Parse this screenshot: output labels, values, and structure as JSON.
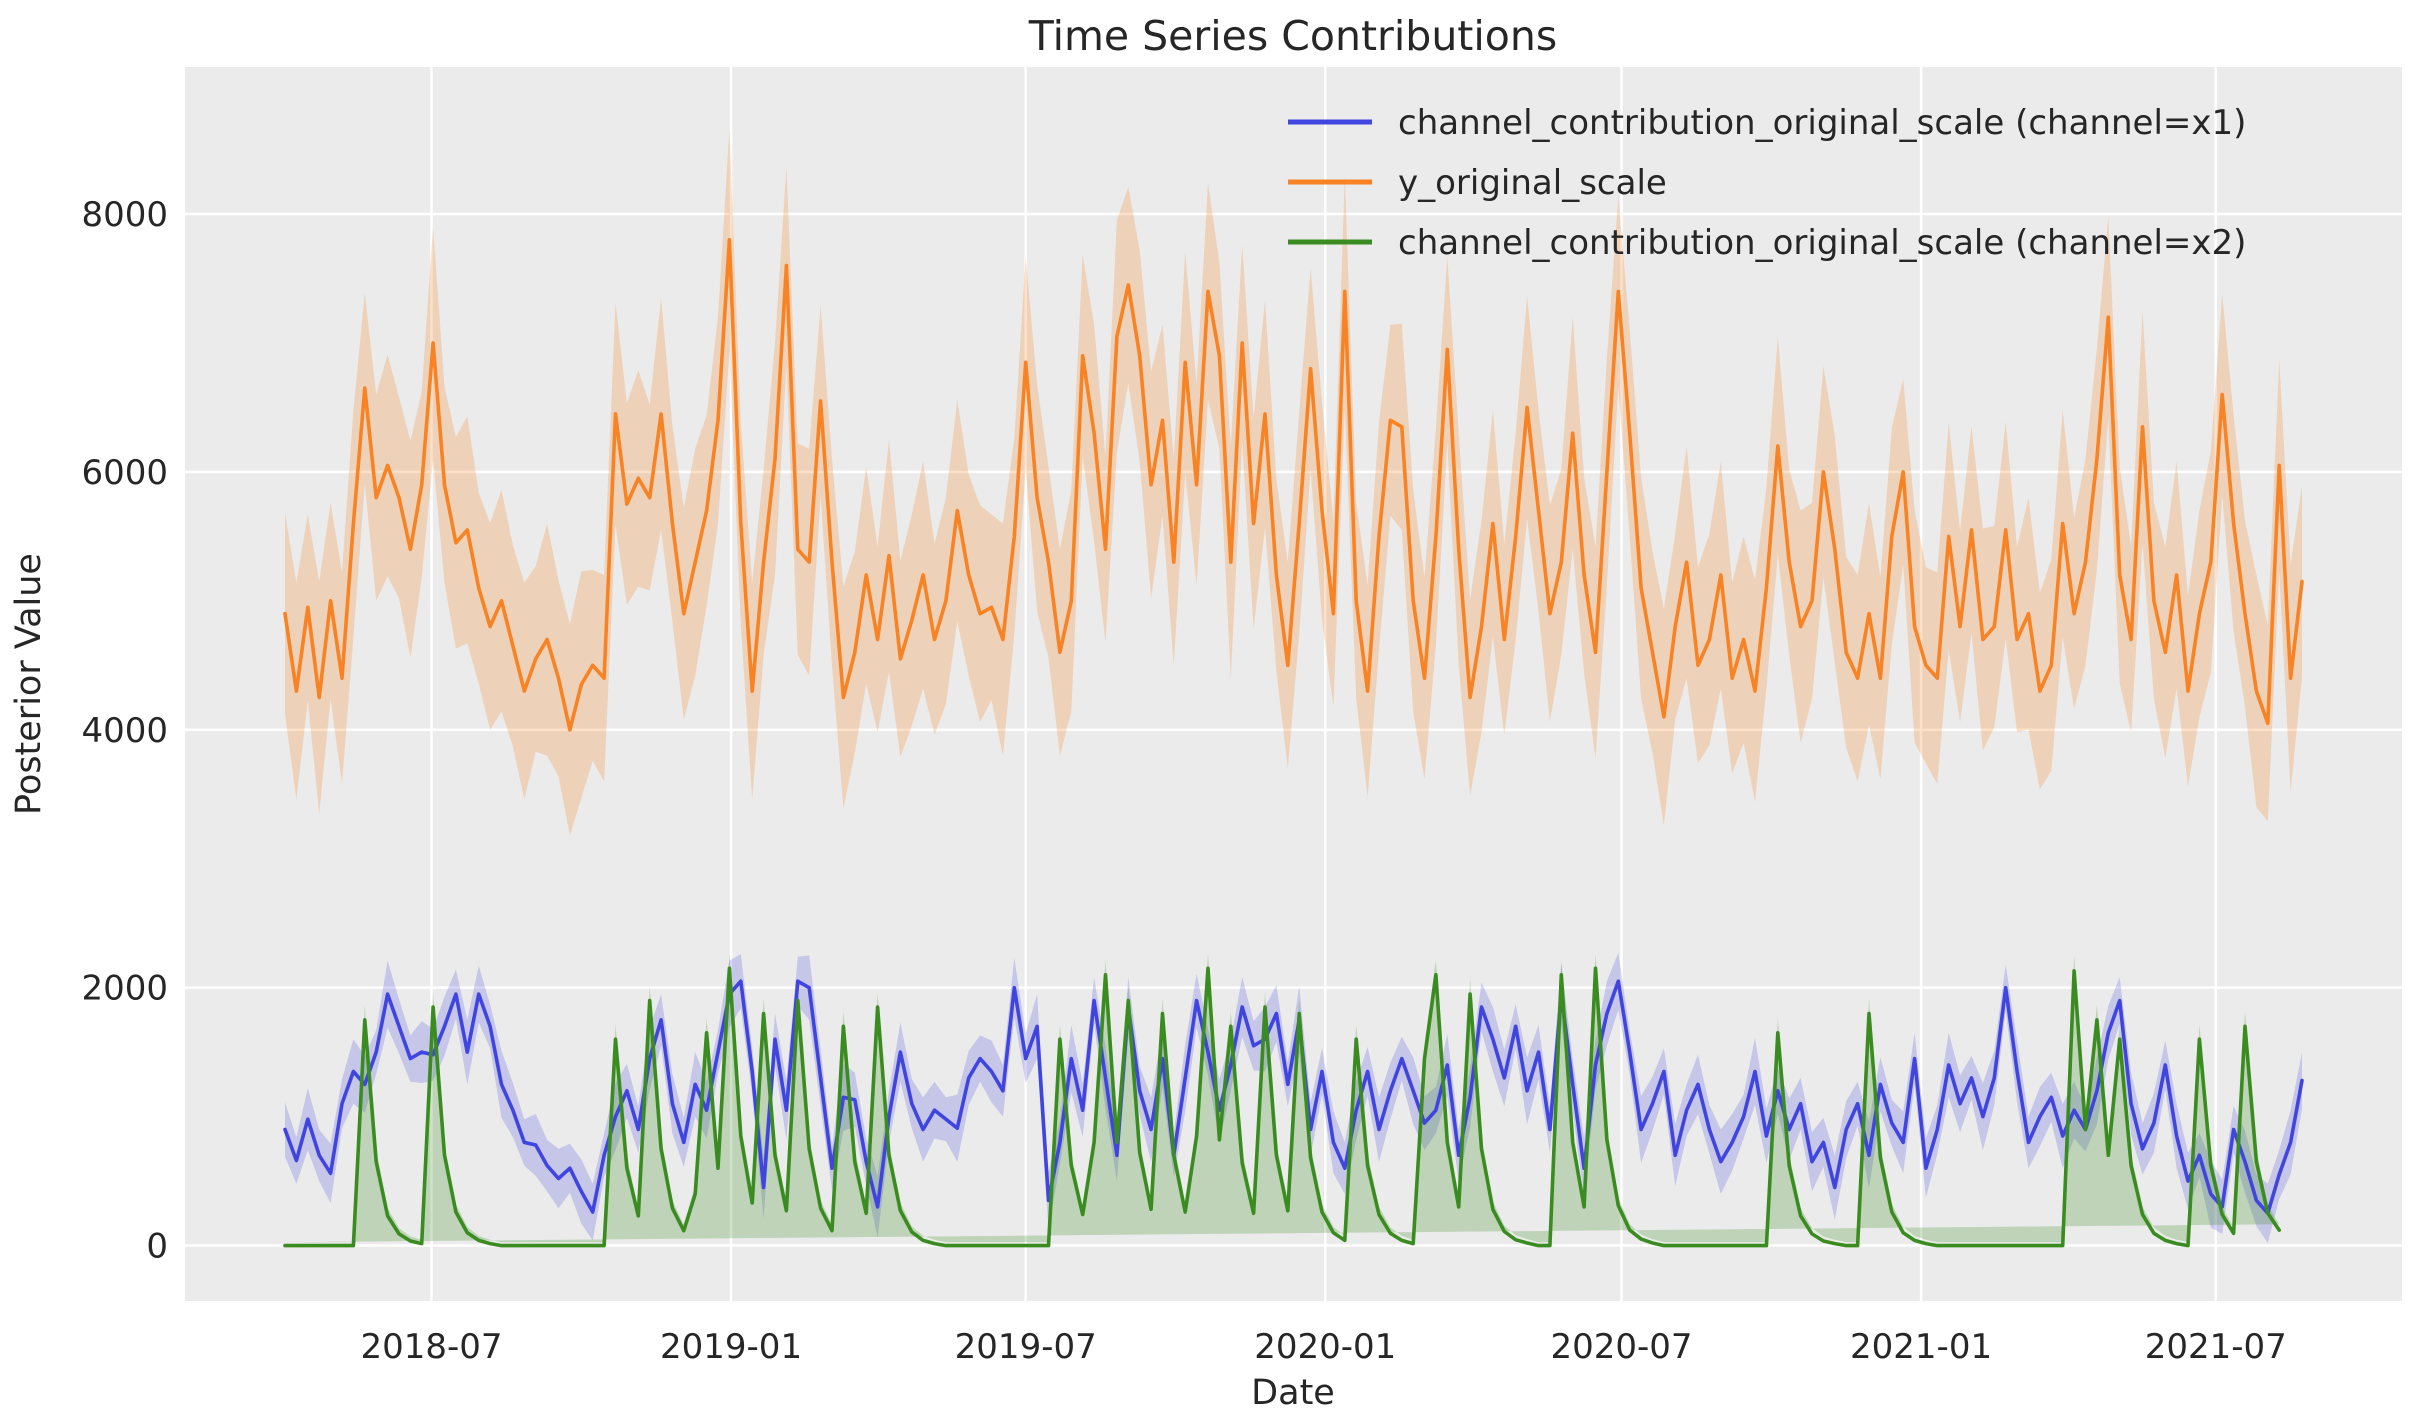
{
  "title": "Time Series Contributions",
  "xlabel": "Date",
  "ylabel": "Posterior Value",
  "colors": {
    "figure_background": "#ffffff",
    "axes_background": "#ebebeb",
    "grid": "#ffffff",
    "text": "#262626",
    "x1_line": "#4045e0",
    "y_line": "#f78325",
    "x2_line": "#3a8c21"
  },
  "legend": {
    "position": "upper right",
    "frame": false
  },
  "chart_data": {
    "type": "line",
    "title": "Time Series Contributions",
    "xlabel": "Date",
    "ylabel": "Posterior Value",
    "grid": true,
    "ylim": [
      -430,
      9140
    ],
    "yticks": [
      {
        "value": 0,
        "label": "0"
      },
      {
        "value": 2000,
        "label": "2000"
      },
      {
        "value": 4000,
        "label": "4000"
      },
      {
        "value": 6000,
        "label": "6000"
      },
      {
        "value": 8000,
        "label": "8000"
      }
    ],
    "xticks": [
      {
        "date": "2018-07-01",
        "label": "2018-07"
      },
      {
        "date": "2019-01-01",
        "label": "2019-01"
      },
      {
        "date": "2019-07-01",
        "label": "2019-07"
      },
      {
        "date": "2020-01-01",
        "label": "2020-01"
      },
      {
        "date": "2020-07-01",
        "label": "2020-07"
      },
      {
        "date": "2021-01-01",
        "label": "2021-01"
      },
      {
        "date": "2021-07-01",
        "label": "2021-07"
      }
    ],
    "x": {
      "start": "2018-04-02",
      "freq_days": 7,
      "n": 178
    },
    "series": [
      {
        "name": "channel_contribution_original_scale (channel=x1)",
        "color": "#4045e0",
        "band_opacity": 0.22,
        "values": [
          900,
          660,
          980,
          700,
          560,
          1100,
          1350,
          1250,
          1500,
          1950,
          1700,
          1450,
          1500,
          1480,
          1700,
          1950,
          1500,
          1950,
          1700,
          1250,
          1050,
          800,
          780,
          620,
          520,
          600,
          420,
          260,
          700,
          1000,
          1200,
          900,
          1450,
          1750,
          1100,
          800,
          1250,
          1050,
          1500,
          1950,
          2050,
          1350,
          450,
          1600,
          1050,
          2050,
          2000,
          1300,
          600,
          1150,
          1130,
          650,
          300,
          1000,
          1500,
          1100,
          900,
          1050,
          980,
          910,
          1300,
          1450,
          1350,
          1200,
          2000,
          1450,
          1700,
          350,
          800,
          1450,
          1050,
          1900,
          1300,
          700,
          1850,
          1200,
          900,
          1450,
          700,
          1300,
          1900,
          1500,
          1050,
          1400,
          1850,
          1550,
          1600,
          1800,
          1250,
          1750,
          900,
          1350,
          800,
          600,
          1050,
          1350,
          900,
          1200,
          1450,
          1200,
          950,
          1050,
          1400,
          700,
          1150,
          1850,
          1600,
          1300,
          1700,
          1200,
          1500,
          900,
          1950,
          1250,
          600,
          1400,
          1800,
          2050,
          1500,
          900,
          1100,
          1350,
          700,
          1050,
          1250,
          900,
          650,
          800,
          1000,
          1350,
          850,
          1200,
          900,
          1100,
          650,
          800,
          450,
          900,
          1100,
          700,
          1250,
          950,
          800,
          1450,
          600,
          900,
          1400,
          1100,
          1300,
          1000,
          1300,
          2000,
          1350,
          800,
          1000,
          1150,
          850,
          1050,
          900,
          1200,
          1650,
          1900,
          1100,
          750,
          950,
          1400,
          850,
          500,
          700,
          400,
          300,
          900,
          650,
          350,
          250,
          550,
          800,
          1280
        ],
        "band_halfwidth": [
          210,
          180,
          240,
          200,
          230,
          190,
          250,
          220,
          170,
          260,
          210,
          180,
          240,
          200,
          230,
          190,
          250,
          220,
          170,
          260,
          210,
          180,
          240,
          200,
          230,
          190,
          250,
          220,
          170,
          260,
          210,
          180,
          240,
          200,
          230,
          190,
          250,
          220,
          170,
          260,
          210,
          180,
          240,
          200,
          230,
          190,
          250,
          220,
          170,
          260,
          210,
          180,
          240,
          200,
          230,
          190,
          250,
          220,
          170,
          260,
          210,
          180,
          240,
          200,
          230,
          190,
          250,
          220,
          170,
          260,
          210,
          180,
          240,
          200,
          230,
          190,
          250,
          220,
          170,
          260,
          210,
          180,
          240,
          200,
          230,
          190,
          250,
          220,
          170,
          260,
          210,
          180,
          240,
          200,
          230,
          190,
          250,
          220,
          170,
          260,
          210,
          180,
          240,
          200,
          230,
          190,
          250,
          220,
          170,
          260,
          210,
          180,
          240,
          200,
          230,
          190,
          250,
          220,
          170,
          260,
          210,
          180,
          240,
          200,
          230,
          190,
          250,
          220,
          170,
          260,
          210,
          180,
          240,
          200,
          230,
          190,
          250,
          220,
          170,
          260,
          210,
          180,
          240,
          200,
          230,
          190,
          250,
          220,
          170,
          260,
          210,
          180,
          240,
          200,
          230,
          190,
          250,
          220,
          170,
          260,
          210,
          180,
          240,
          200,
          230,
          190,
          250,
          220,
          170,
          260,
          210,
          180,
          240,
          200,
          230,
          190,
          250,
          220
        ]
      },
      {
        "name": "y_original_scale",
        "color": "#f78325",
        "band_opacity": 0.25,
        "values": [
          4900,
          4300,
          4950,
          4250,
          5000,
          4400,
          5600,
          6650,
          5800,
          6050,
          5800,
          5400,
          5900,
          7000,
          5900,
          5450,
          5550,
          5100,
          4800,
          5000,
          4650,
          4300,
          4550,
          4700,
          4400,
          4000,
          4350,
          4500,
          4400,
          6450,
          5750,
          5950,
          5800,
          6450,
          5600,
          4900,
          5300,
          5700,
          6400,
          7800,
          5600,
          4300,
          5300,
          6100,
          7600,
          5400,
          5300,
          6550,
          5300,
          4250,
          4600,
          5200,
          4700,
          5350,
          4550,
          4850,
          5200,
          4700,
          5000,
          5700,
          5200,
          4900,
          4950,
          4700,
          5500,
          6850,
          5800,
          5300,
          4600,
          5000,
          6900,
          6300,
          5400,
          7050,
          7450,
          6900,
          5900,
          6400,
          5300,
          6850,
          5900,
          7400,
          6900,
          5300,
          7000,
          5600,
          6450,
          5200,
          4500,
          5600,
          6800,
          5700,
          4900,
          7400,
          5000,
          4300,
          5500,
          6400,
          6350,
          5000,
          4400,
          5500,
          6950,
          5400,
          4250,
          4800,
          5600,
          4700,
          5500,
          6500,
          5700,
          4900,
          5300,
          6300,
          5200,
          4600,
          6000,
          7400,
          6300,
          5100,
          4600,
          4100,
          4800,
          5300,
          4500,
          4700,
          5200,
          4400,
          4700,
          4300,
          5100,
          6200,
          5300,
          4800,
          5000,
          6000,
          5400,
          4600,
          4400,
          4900,
          4400,
          5500,
          6000,
          4800,
          4500,
          4400,
          5500,
          4800,
          5550,
          4700,
          4800,
          5550,
          4700,
          4900,
          4300,
          4500,
          5600,
          4900,
          5300,
          6100,
          7200,
          5200,
          4700,
          6350,
          5000,
          4600,
          5200,
          4300,
          4900,
          5300,
          6600,
          5600,
          4900,
          4300,
          4050,
          6050,
          4400,
          5150
        ],
        "band_halfwidth": [
          780,
          840,
          720,
          900,
          760,
          820,
          880,
          740,
          800,
          860,
          780,
          840,
          720,
          900,
          760,
          820,
          880,
          740,
          800,
          860,
          780,
          840,
          720,
          900,
          760,
          820,
          880,
          740,
          800,
          860,
          780,
          840,
          720,
          900,
          760,
          820,
          880,
          740,
          800,
          860,
          780,
          840,
          720,
          900,
          760,
          820,
          880,
          740,
          800,
          860,
          780,
          840,
          720,
          900,
          760,
          820,
          880,
          740,
          800,
          860,
          780,
          840,
          720,
          900,
          760,
          820,
          880,
          740,
          800,
          860,
          780,
          840,
          720,
          900,
          760,
          820,
          880,
          740,
          800,
          860,
          780,
          840,
          720,
          900,
          760,
          820,
          880,
          740,
          800,
          860,
          780,
          840,
          720,
          900,
          760,
          820,
          880,
          740,
          800,
          860,
          780,
          840,
          720,
          900,
          760,
          820,
          880,
          740,
          800,
          860,
          780,
          840,
          720,
          900,
          760,
          820,
          880,
          740,
          800,
          860,
          780,
          840,
          720,
          900,
          760,
          820,
          880,
          740,
          800,
          860,
          780,
          840,
          720,
          900,
          760,
          820,
          880,
          740,
          800,
          860,
          780,
          840,
          720,
          900,
          760,
          820,
          880,
          740,
          800,
          860,
          780,
          840,
          720,
          900,
          760,
          820,
          880,
          740,
          800,
          860,
          780,
          840,
          720,
          900,
          760,
          820,
          880,
          740,
          800,
          860,
          780,
          840,
          720,
          900,
          760,
          820,
          880,
          740
        ]
      },
      {
        "name": "channel_contribution_original_scale (channel=x2)",
        "color": "#3a8c21",
        "band_opacity": 0.25,
        "values": [
          0,
          0,
          0,
          0,
          0,
          0,
          0,
          1750,
          650,
          230,
          90,
          35,
          15,
          1850,
          700,
          260,
          100,
          40,
          15,
          0,
          0,
          0,
          0,
          0,
          0,
          0,
          0,
          0,
          0,
          1600,
          600,
          230,
          1900,
          750,
          290,
          115,
          400,
          1650,
          600,
          2150,
          850,
          330,
          1800,
          700,
          270,
          1900,
          750,
          290,
          115,
          1700,
          650,
          250,
          1850,
          700,
          270,
          105,
          40,
          15,
          0,
          0,
          0,
          0,
          0,
          0,
          0,
          0,
          0,
          0,
          1600,
          620,
          240,
          800,
          2100,
          800,
          1900,
          720,
          280,
          1800,
          700,
          260,
          850,
          2150,
          820,
          1700,
          640,
          250,
          1850,
          700,
          270,
          1800,
          680,
          260,
          100,
          40,
          1600,
          620,
          240,
          95,
          40,
          15,
          1450,
          2100,
          800,
          300,
          1950,
          750,
          280,
          110,
          45,
          20,
          0,
          0,
          2100,
          800,
          300,
          2150,
          820,
          310,
          120,
          50,
          20,
          0,
          0,
          0,
          0,
          0,
          0,
          0,
          0,
          0,
          0,
          1650,
          620,
          230,
          90,
          35,
          15,
          0,
          0,
          1800,
          680,
          260,
          100,
          40,
          15,
          0,
          0,
          0,
          0,
          0,
          0,
          0,
          0,
          0,
          0,
          0,
          0,
          2130,
          900,
          1750,
          700,
          1600,
          620,
          240,
          95,
          40,
          15,
          0,
          1600,
          620,
          240,
          95,
          1700,
          650,
          250,
          120
        ],
        "band_halfwidth": [
          25,
          25,
          25,
          25,
          25,
          25,
          25,
          115,
          90,
          60,
          45,
          35,
          30,
          115,
          90,
          60,
          45,
          35,
          30,
          25,
          25,
          25,
          25,
          25,
          25,
          25,
          25,
          25,
          25,
          115,
          90,
          60,
          115,
          90,
          60,
          45,
          70,
          115,
          90,
          115,
          90,
          60,
          115,
          90,
          60,
          115,
          90,
          60,
          45,
          115,
          90,
          60,
          115,
          90,
          60,
          45,
          35,
          30,
          25,
          25,
          25,
          25,
          25,
          25,
          25,
          25,
          25,
          25,
          115,
          90,
          60,
          90,
          115,
          90,
          115,
          90,
          60,
          115,
          90,
          60,
          90,
          115,
          90,
          115,
          90,
          60,
          115,
          90,
          60,
          115,
          90,
          60,
          45,
          35,
          115,
          90,
          60,
          45,
          35,
          30,
          115,
          115,
          90,
          60,
          115,
          90,
          60,
          45,
          35,
          30,
          25,
          25,
          115,
          90,
          60,
          115,
          90,
          60,
          45,
          35,
          30,
          25,
          25,
          25,
          25,
          25,
          25,
          25,
          25,
          25,
          25,
          115,
          90,
          60,
          45,
          35,
          30,
          25,
          25,
          115,
          90,
          60,
          45,
          35,
          30,
          25,
          25,
          25,
          25,
          25,
          25,
          25,
          25,
          25,
          25,
          25,
          25,
          115,
          90,
          115,
          90,
          115,
          90,
          60,
          45,
          35,
          30,
          25,
          115,
          90,
          60,
          45,
          115,
          90,
          60,
          45
        ]
      }
    ]
  }
}
